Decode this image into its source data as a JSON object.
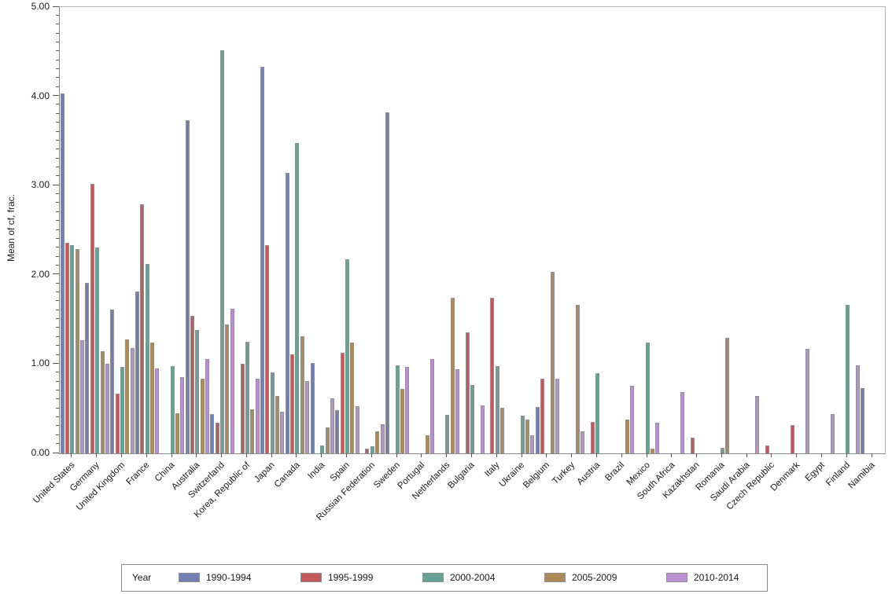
{
  "chart_data": {
    "type": "bar",
    "title": "",
    "xlabel": "",
    "ylabel": "Mean of cf, frac.",
    "ylim": [
      0,
      5
    ],
    "ytick_step": 1.0,
    "y_minor_tick_step": 0.1,
    "ytick_labels": [
      "0.00",
      "1.00",
      "2.00",
      "3.00",
      "4.00",
      "5.00"
    ],
    "grid": "off",
    "legend_title": "Year",
    "legend_position": "bottom",
    "bar_outline_color": "#8f8f8f",
    "categories": [
      "United States",
      "Germany",
      "United Kingdom",
      "France",
      "China",
      "Australia",
      "Switzerland",
      "Korea, Republic of",
      "Japan",
      "Canada",
      "India",
      "Spain",
      "Russian Federation",
      "Sweden",
      "Portugal",
      "Netherlands",
      "Bulgaria",
      "Italy",
      "Ukraine",
      "Belgium",
      "Turkey",
      "Austria",
      "Brazil",
      "Mexico",
      "South Africa",
      "Kazakhstan",
      "Romania",
      "Saudi Arabia",
      "Czech Republic",
      "Denmark",
      "Egypt",
      "Finland",
      "Namibia"
    ],
    "series": [
      {
        "name": "1990-1994",
        "color": "#717fb3",
        "values": [
          4.03,
          1.91,
          1.61,
          1.81,
          null,
          3.73,
          0.44,
          null,
          4.33,
          3.14,
          1.01,
          0.48,
          null,
          3.82,
          null,
          null,
          null,
          null,
          null,
          0.52,
          null,
          null,
          null,
          null,
          null,
          null,
          null,
          null,
          null,
          null,
          null,
          null,
          0.73
        ]
      },
      {
        "name": "1995-1999",
        "color": "#c4595c",
        "values": [
          2.36,
          3.02,
          0.67,
          2.79,
          null,
          1.54,
          0.34,
          1.0,
          2.33,
          1.11,
          null,
          1.13,
          0.05,
          null,
          null,
          null,
          1.36,
          1.74,
          null,
          0.84,
          null,
          0.35,
          null,
          null,
          null,
          0.18,
          null,
          null,
          0.09,
          0.32,
          null,
          null,
          null
        ]
      },
      {
        "name": "2000-2004",
        "color": "#68a297",
        "values": [
          2.33,
          2.31,
          0.97,
          2.12,
          0.98,
          1.38,
          4.52,
          1.25,
          0.91,
          3.48,
          0.09,
          2.17,
          0.08,
          0.99,
          null,
          0.43,
          0.77,
          0.98,
          0.42,
          null,
          null,
          0.9,
          null,
          1.24,
          null,
          null,
          0.06,
          null,
          null,
          null,
          null,
          1.66,
          null
        ]
      },
      {
        "name": "2005-2009",
        "color": "#ae8a57",
        "values": [
          2.29,
          1.14,
          1.28,
          1.24,
          0.45,
          0.84,
          1.44,
          0.49,
          0.64,
          1.31,
          0.29,
          1.24,
          0.25,
          0.72,
          0.2,
          1.74,
          null,
          0.51,
          0.38,
          2.03,
          1.66,
          null,
          0.38,
          0.05,
          null,
          null,
          1.29,
          null,
          null,
          null,
          null,
          null,
          null
        ]
      },
      {
        "name": "2010-2014",
        "color": "#ba90d2",
        "values": [
          1.27,
          1.0,
          1.18,
          0.95,
          0.85,
          1.06,
          1.62,
          0.84,
          0.47,
          0.81,
          0.62,
          0.53,
          0.33,
          0.97,
          1.06,
          0.94,
          0.54,
          null,
          0.2,
          0.84,
          0.25,
          null,
          0.76,
          0.34,
          0.69,
          null,
          null,
          0.64,
          null,
          1.17,
          0.44,
          0.99,
          null
        ]
      }
    ]
  }
}
